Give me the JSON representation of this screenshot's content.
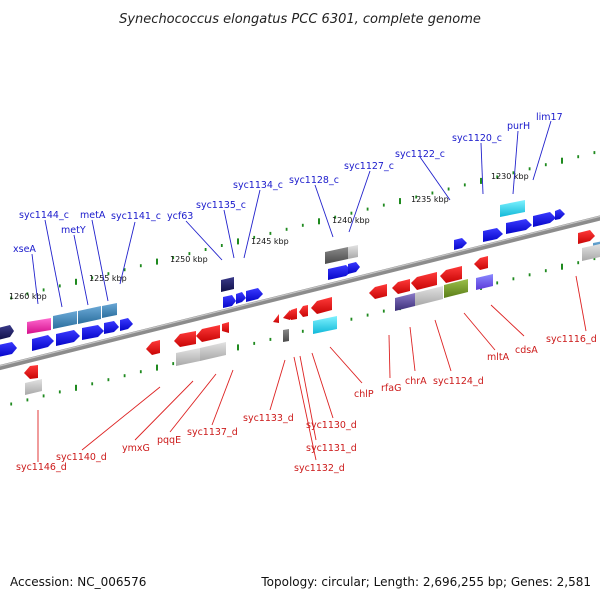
{
  "title": "Synechococcus elongatus PCC 6301, complete genome",
  "footer": {
    "accession": "Accession: NC_006576",
    "summary": "Topology: circular; Length: 2,696,255 bp; Genes: 2,581"
  },
  "colors": {
    "backbone": "#7a7a7a",
    "tick": "#1f8a1f",
    "forward_strand": "#1515e6",
    "reverse_strand": "#e61515",
    "top_label": "#1a1acc",
    "bottom_label": "#cc1a1a"
  },
  "kbp_markers": [
    "1260 kbp",
    "1255 kbp",
    "1250 kbp",
    "1245 kbp",
    "1240 kbp",
    "1235 kbp",
    "1230 kbp"
  ],
  "top_genes": [
    "xseA",
    "syc1144_c",
    "metY",
    "metA",
    "syc1141_c",
    "ycf63",
    "syc1135_c",
    "syc1134_c",
    "syc1128_c",
    "syc1127_c",
    "syc1122_c",
    "syc1120_c",
    "purH",
    "lim17"
  ],
  "bottom_genes": [
    "syc1146_d",
    "syc1140_d",
    "ymxG",
    "pqqE",
    "syc1137_d",
    "syc1133_d",
    "syc1132_d",
    "syc1131_d",
    "syc1130_d",
    "chlP",
    "rfaG",
    "chrA",
    "syc1124_d",
    "mltA",
    "cdsA",
    "syc1116_d"
  ]
}
